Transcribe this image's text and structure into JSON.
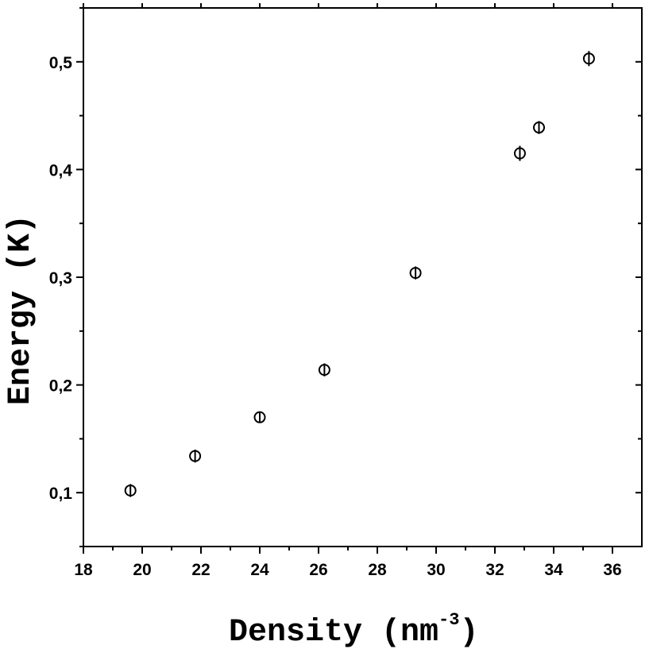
{
  "chart_data": {
    "type": "scatter",
    "title": "",
    "xlabel": "Density (nm",
    "xlabel_superscript": "-3",
    "xlabel_suffix": ")",
    "ylabel": "Energy (K)",
    "xlim": [
      18,
      37
    ],
    "ylim": [
      0.05,
      0.55
    ],
    "x_ticks": [
      18,
      20,
      22,
      24,
      26,
      28,
      30,
      32,
      34,
      36
    ],
    "x_tick_labels": [
      "18",
      "20",
      "22",
      "24",
      "26",
      "28",
      "30",
      "32",
      "34",
      "36"
    ],
    "y_ticks": [
      0.1,
      0.2,
      0.3,
      0.4,
      0.5
    ],
    "y_tick_labels": [
      "0,1",
      "0,2",
      "0,3",
      "0,4",
      "0,5"
    ],
    "grid": false,
    "marker": "open-circle-with-errorbar",
    "color": "#000000",
    "x": [
      19.6,
      21.8,
      24.0,
      26.2,
      29.3,
      32.85,
      33.5,
      35.2
    ],
    "y": [
      0.102,
      0.134,
      0.17,
      0.214,
      0.304,
      0.415,
      0.439,
      0.503
    ],
    "error": [
      0.006,
      0.006,
      0.005,
      0.006,
      0.006,
      0.007,
      0.006,
      0.007
    ]
  }
}
